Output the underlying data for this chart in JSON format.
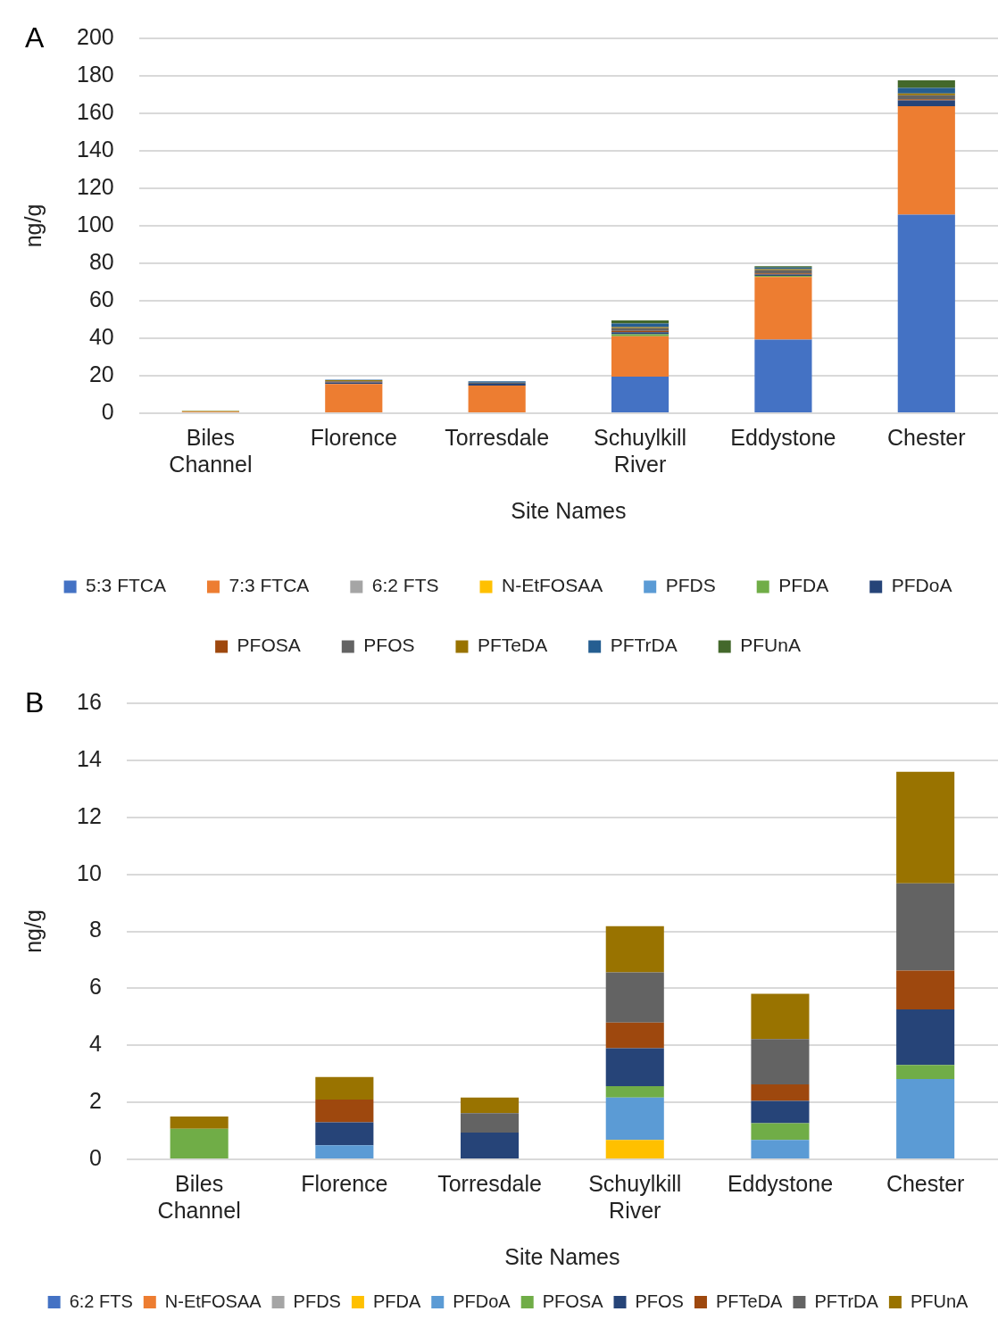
{
  "chart_data": [
    {
      "type": "bar",
      "stacked": true,
      "ylabel": "ng/g",
      "xlabel": "Site Names",
      "annotations": [
        "A"
      ],
      "grid": "y",
      "legend": "bottom",
      "categories": [
        "Biles Channel",
        "Florence",
        "Torresdale",
        "Schuylkill River",
        "Eddystone",
        "Chester"
      ],
      "ylim": [
        0,
        200
      ],
      "yticks": [
        0,
        20,
        40,
        60,
        80,
        100,
        120,
        140,
        160,
        180,
        200
      ],
      "series": [
        {
          "name": "5:3 FTCA",
          "color": "#4472c4",
          "values": [
            0,
            0,
            0,
            19.5,
            39.3,
            106
          ]
        },
        {
          "name": "7:3 FTCA",
          "color": "#ed7d31",
          "values": [
            0.8,
            15.6,
            14.8,
            21.6,
            33.4,
            57.8
          ]
        },
        {
          "name": "6:2 FTS",
          "color": "#a5a5a5",
          "values": [
            0,
            0,
            0,
            0,
            0,
            0
          ]
        },
        {
          "name": "N-EtFOSAA",
          "color": "#ffc000",
          "values": [
            0,
            0,
            0,
            0,
            0,
            0
          ]
        },
        {
          "name": "PFDS",
          "color": "#5b9bd5",
          "values": [
            0,
            0,
            0,
            0,
            0,
            0
          ]
        },
        {
          "name": "PFDA",
          "color": "#70ad47",
          "values": [
            0.3,
            0,
            0,
            1,
            0.6,
            0
          ]
        },
        {
          "name": "PFDoA",
          "color": "#264478",
          "values": [
            0,
            0.8,
            0.9,
            1.1,
            0.8,
            3.1
          ]
        },
        {
          "name": "PFOSA",
          "color": "#9e480e",
          "values": [
            0,
            0.4,
            0,
            0.7,
            0.6,
            0.6
          ]
        },
        {
          "name": "PFOS",
          "color": "#636363",
          "values": [
            0,
            0.4,
            0.6,
            1.4,
            1.6,
            2.1
          ]
        },
        {
          "name": "PFTeDA",
          "color": "#997300",
          "values": [
            0.2,
            0.4,
            0,
            0.7,
            0.6,
            1
          ]
        },
        {
          "name": "PFTrDA",
          "color": "#255e91",
          "values": [
            0,
            0.3,
            0.7,
            1.8,
            0.8,
            3
          ]
        },
        {
          "name": "PFUnA",
          "color": "#43682b",
          "values": [
            0,
            null,
            0,
            1.7,
            0.8,
            4
          ]
        }
      ]
    },
    {
      "type": "bar",
      "stacked": true,
      "ylabel": "ng/g",
      "xlabel": "Site Names",
      "annotations": [
        "B"
      ],
      "grid": "y",
      "legend": "bottom",
      "categories": [
        "Biles Channel",
        "Florence",
        "Torresdale",
        "Schuylkill River",
        "Eddystone",
        "Chester"
      ],
      "ylim": [
        0,
        16
      ],
      "yticks": [
        0,
        2,
        4,
        6,
        8,
        10,
        12,
        14,
        16
      ],
      "series": [
        {
          "name": "6:2 FTS",
          "color": "#4472c4",
          "values": [
            0,
            0,
            0,
            0,
            0,
            0
          ]
        },
        {
          "name": "N-EtFOSAA",
          "color": "#ed7d31",
          "values": [
            0,
            0,
            0,
            0,
            0,
            0
          ]
        },
        {
          "name": "PFDS",
          "color": "#a5a5a5",
          "values": [
            0,
            0,
            0,
            0,
            0,
            0
          ]
        },
        {
          "name": "PFDA",
          "color": "#ffc000",
          "values": [
            0,
            0,
            0,
            0.68,
            0,
            0
          ]
        },
        {
          "name": "PFDoA",
          "color": "#5b9bd5",
          "values": [
            0,
            0.49,
            0,
            1.49,
            0.68,
            2.82
          ]
        },
        {
          "name": "PFOSA",
          "color": "#70ad47",
          "values": [
            1.07,
            0,
            0,
            0.4,
            0.59,
            0.49
          ]
        },
        {
          "name": "PFOS",
          "color": "#264478",
          "values": [
            0,
            0.81,
            0.94,
            1.33,
            0.78,
            1.95
          ]
        },
        {
          "name": "PFTeDA",
          "color": "#9e480e",
          "values": [
            0,
            0.8,
            0,
            0.9,
            0.58,
            1.36
          ]
        },
        {
          "name": "PFTrDA",
          "color": "#636363",
          "values": [
            0,
            0,
            0.68,
            1.76,
            1.59,
            3.06
          ]
        },
        {
          "name": "PFUnA",
          "color": "#997300",
          "values": [
            0.43,
            0.79,
            0.55,
            1.62,
            1.59,
            3.92
          ]
        }
      ]
    }
  ]
}
